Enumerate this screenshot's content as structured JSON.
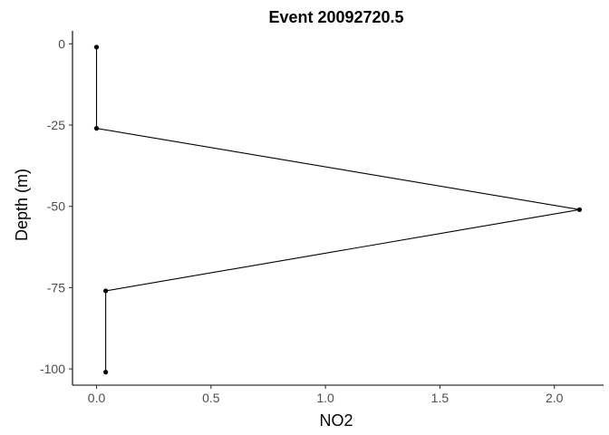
{
  "chart_data": {
    "type": "line",
    "title": "Event 20092720.5",
    "xlabel": "NO2",
    "ylabel": "Depth (m)",
    "xlim": [
      -0.105,
      2.215
    ],
    "ylim": [
      -105,
      4
    ],
    "x_ticks": [
      0,
      0.5,
      1,
      1.5,
      2
    ],
    "x_tick_labels": [
      "0.0",
      "0.5",
      "1.0",
      "1.5",
      "2.0"
    ],
    "y_ticks": [
      0,
      -25,
      -50,
      -75,
      -100
    ],
    "y_tick_labels": [
      "0",
      "-25",
      "-50",
      "-75",
      "-100"
    ],
    "grid": false,
    "legend": "none",
    "series": [
      {
        "color": "#000000",
        "points": [
          {
            "x": 0.0,
            "y": -1
          },
          {
            "x": 0.0,
            "y": -26
          },
          {
            "x": 2.11,
            "y": -51
          },
          {
            "x": 0.04,
            "y": -76
          },
          {
            "x": 0.04,
            "y": -101
          }
        ]
      }
    ]
  }
}
